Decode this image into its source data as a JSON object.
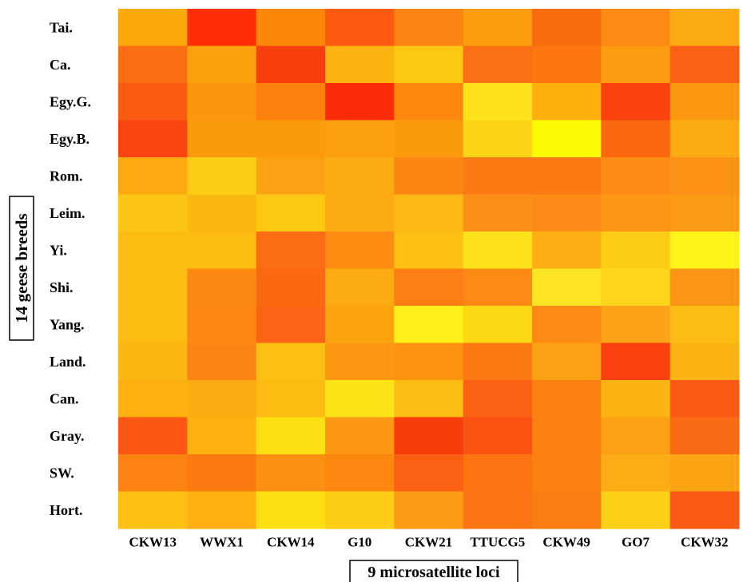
{
  "chart_data": {
    "type": "heatmap",
    "title": "",
    "xlabel": "9 microsatellite loci",
    "ylabel": "14 geese breeds",
    "x_categories": [
      "CKW13",
      "WWX1",
      "CKW14",
      "G10",
      "CKW21",
      "TTUCG5",
      "CKW49",
      "GO7",
      "CKW32"
    ],
    "y_categories": [
      "Tai.",
      "Ca.",
      "Egy.G.",
      "Egy.B.",
      "Rom.",
      "Leim.",
      "Yi.",
      "Shi.",
      "Yang.",
      "Land.",
      "Can.",
      "Gray.",
      "SW.",
      "Hort."
    ],
    "colors": [
      [
        "#fcaa0b",
        "#ff2d08",
        "#fc8708",
        "#fb5a10",
        "#fc8413",
        "#fc9c0e",
        "#fb6c0e",
        "#fc8a13",
        "#fcac12"
      ],
      [
        "#fb6c13",
        "#fca00e",
        "#f8400f",
        "#fcb412",
        "#fcc814",
        "#fb7014",
        "#fc7611",
        "#fc9c10",
        "#fb6014"
      ],
      [
        "#fb5c13",
        "#fc960c",
        "#fc800d",
        "#fb2c08",
        "#fc8810",
        "#fde21c",
        "#fcb00e",
        "#f9420e",
        "#fc9810"
      ],
      [
        "#f9440f",
        "#fc9a0e",
        "#fc9a0e",
        "#fca00f",
        "#fc9a0e",
        "#fdd418",
        "#fefa05",
        "#fb6810",
        "#fcac12"
      ],
      [
        "#fcaa10",
        "#fdcc16",
        "#fca014",
        "#fcac12",
        "#fc8612",
        "#fc7a14",
        "#fc7a14",
        "#fc8c16",
        "#fc9216"
      ],
      [
        "#fdc616",
        "#fcb812",
        "#fdc814",
        "#fcac12",
        "#fcb814",
        "#fc9016",
        "#fc8a16",
        "#fc9616",
        "#fc9a16"
      ],
      [
        "#fcbc12",
        "#fcbc12",
        "#fb6c14",
        "#fc8c12",
        "#fcc014",
        "#fde21c",
        "#fcae12",
        "#fdcc16",
        "#fef41a"
      ],
      [
        "#fcbc12",
        "#fc8a12",
        "#fb6812",
        "#fcac12",
        "#fc7e14",
        "#fc8a14",
        "#fde424",
        "#fdd61c",
        "#fc9616"
      ],
      [
        "#fcbc12",
        "#fc8812",
        "#fb6414",
        "#fca410",
        "#fef018",
        "#fdd814",
        "#fc8a14",
        "#fca416",
        "#fcbc14"
      ],
      [
        "#fcb812",
        "#fc8412",
        "#fcc014",
        "#fc9812",
        "#fc9412",
        "#fc7a14",
        "#fca016",
        "#f9400f",
        "#fcb414"
      ],
      [
        "#fcb012",
        "#fcac12",
        "#fcbc12",
        "#fde418",
        "#fcbc14",
        "#fb6214",
        "#fc8014",
        "#fcb414",
        "#fb5a14"
      ],
      [
        "#fb5614",
        "#fcb012",
        "#fde014",
        "#fc9812",
        "#f93c0c",
        "#fb5412",
        "#fc8012",
        "#fca014",
        "#fb6a14"
      ],
      [
        "#fc8212",
        "#fc7a12",
        "#fc9012",
        "#fc8812",
        "#fb6014",
        "#fc7412",
        "#fc8012",
        "#fcac14",
        "#fca414"
      ],
      [
        "#fcc012",
        "#fcb012",
        "#fde014",
        "#fdcc14",
        "#fc9c14",
        "#fc7414",
        "#fc7c14",
        "#fdd018",
        "#fb5a14"
      ]
    ]
  }
}
